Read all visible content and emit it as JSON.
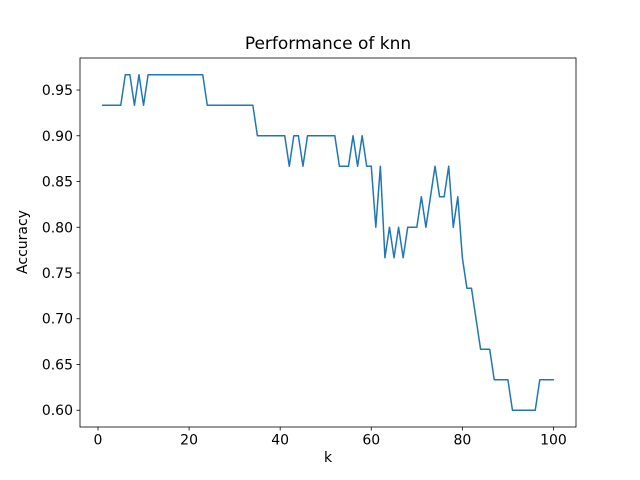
{
  "chart_data": {
    "type": "line",
    "title": "Performance of knn",
    "xlabel": "k",
    "ylabel": "Accuracy",
    "line_color": "#1f77b4",
    "line_width": 1.5,
    "background_color": "#ffffff",
    "spine_color": "#000000",
    "grid": false,
    "legend": null,
    "xlim": [
      -3.95,
      104.95
    ],
    "ylim": [
      0.58167,
      0.985
    ],
    "xtick_values": [
      0,
      20,
      40,
      60,
      80,
      100
    ],
    "xtick_labels": [
      "0",
      "20",
      "40",
      "60",
      "80",
      "100"
    ],
    "ytick_values": [
      0.6,
      0.65,
      0.7,
      0.75,
      0.8,
      0.85,
      0.9,
      0.95
    ],
    "ytick_labels": [
      "0.60",
      "0.65",
      "0.70",
      "0.75",
      "0.80",
      "0.85",
      "0.90",
      "0.95"
    ],
    "x": [
      1,
      2,
      3,
      4,
      5,
      6,
      7,
      8,
      9,
      10,
      11,
      12,
      13,
      14,
      15,
      16,
      17,
      18,
      19,
      20,
      21,
      22,
      23,
      24,
      25,
      26,
      27,
      28,
      29,
      30,
      31,
      32,
      33,
      34,
      35,
      36,
      37,
      38,
      39,
      40,
      41,
      42,
      43,
      44,
      45,
      46,
      47,
      48,
      49,
      50,
      51,
      52,
      53,
      54,
      55,
      56,
      57,
      58,
      59,
      60,
      61,
      62,
      63,
      64,
      65,
      66,
      67,
      68,
      69,
      70,
      71,
      72,
      73,
      74,
      75,
      76,
      77,
      78,
      79,
      80,
      81,
      82,
      83,
      84,
      85,
      86,
      87,
      88,
      89,
      90,
      91,
      92,
      93,
      94,
      95,
      96,
      97,
      98,
      99,
      100
    ],
    "y": [
      0.9333,
      0.9333,
      0.9333,
      0.9333,
      0.9333,
      0.9667,
      0.9667,
      0.9333,
      0.9667,
      0.9333,
      0.9667,
      0.9667,
      0.9667,
      0.9667,
      0.9667,
      0.9667,
      0.9667,
      0.9667,
      0.9667,
      0.9667,
      0.9667,
      0.9667,
      0.9667,
      0.9333,
      0.9333,
      0.9333,
      0.9333,
      0.9333,
      0.9333,
      0.9333,
      0.9333,
      0.9333,
      0.9333,
      0.9333,
      0.9,
      0.9,
      0.9,
      0.9,
      0.9,
      0.9,
      0.9,
      0.8667,
      0.9,
      0.9,
      0.8667,
      0.9,
      0.9,
      0.9,
      0.9,
      0.9,
      0.9,
      0.9,
      0.8667,
      0.8667,
      0.8667,
      0.9,
      0.8667,
      0.9,
      0.8667,
      0.8667,
      0.8,
      0.8667,
      0.7667,
      0.8,
      0.7667,
      0.8,
      0.7667,
      0.8,
      0.8,
      0.8,
      0.8333,
      0.8,
      0.8333,
      0.8667,
      0.8333,
      0.8333,
      0.8667,
      0.8,
      0.8333,
      0.7667,
      0.7333,
      0.7333,
      0.7,
      0.6667,
      0.6667,
      0.6667,
      0.6333,
      0.6333,
      0.6333,
      0.6333,
      0.6,
      0.6,
      0.6,
      0.6,
      0.6,
      0.6,
      0.6333,
      0.6333,
      0.6333,
      0.6333
    ]
  }
}
